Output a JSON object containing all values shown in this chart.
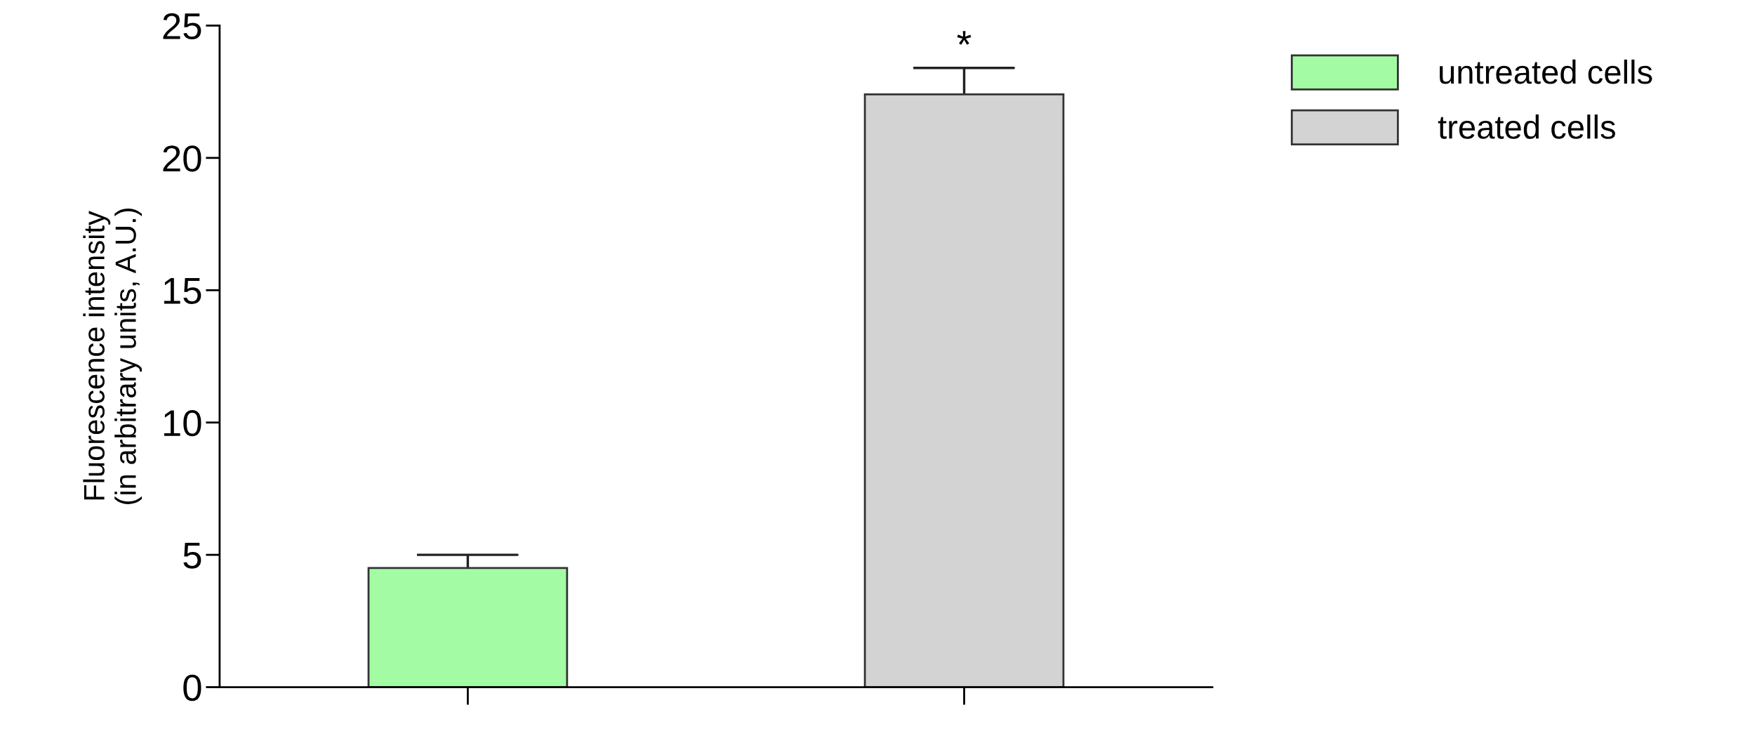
{
  "chart_data": {
    "type": "bar",
    "ylabel": "Fluorescence intensity\n(in arbitrary units, A.U.)",
    "categories": [
      null,
      null
    ],
    "series": [
      {
        "name": "untreated cells",
        "color": "#a3fca3",
        "values": [
          4.5,
          null
        ],
        "errors": [
          0.5,
          null
        ]
      },
      {
        "name": "treated cells",
        "color": "#d3d3d3",
        "values": [
          null,
          22.4
        ],
        "errors": [
          null,
          1.0
        ]
      }
    ],
    "ylim": [
      0,
      25
    ],
    "yticks": [
      0,
      5,
      10,
      15,
      20,
      25
    ],
    "grid": false,
    "legend": "top right",
    "tick_labels": "y",
    "annotations": [
      "*"
    ]
  }
}
